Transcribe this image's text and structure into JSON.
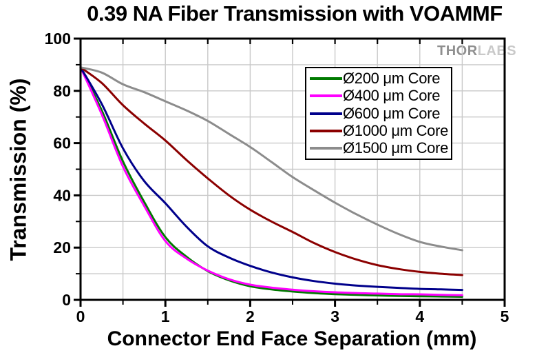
{
  "title": "0.39 NA Fiber Transmission with VOAMMF",
  "watermark": {
    "part1": "THOR",
    "part2": "LABS"
  },
  "colors": {
    "background": "#ffffff",
    "axis": "#000000",
    "gridline": "#c9c9c9",
    "text": "#000000",
    "watermark_dark": "#8f8f8f",
    "watermark_light": "#c9c9c9"
  },
  "chart_data": {
    "type": "line",
    "title": "0.39 NA Fiber Transmission with VOAMMF",
    "xlabel": "Connector End Face Separation (mm)",
    "ylabel": "Transmission (%)",
    "xlim": [
      0,
      5
    ],
    "ylim": [
      0,
      100
    ],
    "x_ticks": [
      0,
      1,
      2,
      3,
      4,
      5
    ],
    "y_ticks": [
      0,
      20,
      40,
      60,
      80,
      100
    ],
    "x_minor_step": 0.5,
    "y_minor_step": 10,
    "grid": true,
    "legend_position": "upper-right-inside",
    "x": [
      0,
      0.25,
      0.5,
      0.75,
      1.0,
      1.25,
      1.5,
      1.75,
      2.0,
      2.25,
      2.5,
      2.75,
      3.0,
      3.25,
      3.5,
      3.75,
      4.0,
      4.25,
      4.5
    ],
    "series": [
      {
        "name": "Ø200 μm Core",
        "color": "#007a00",
        "values": [
          89,
          72.5,
          53,
          37.5,
          24,
          16.5,
          11,
          7.5,
          5.2,
          4.0,
          3.2,
          2.6,
          2.2,
          1.9,
          1.7,
          1.5,
          1.4,
          1.3,
          1.2
        ]
      },
      {
        "name": "Ø400 μm Core",
        "color": "#ff00ff",
        "values": [
          89,
          71,
          51,
          36,
          22.5,
          15.8,
          11.2,
          7.9,
          5.8,
          4.7,
          3.9,
          3.3,
          2.9,
          2.6,
          2.4,
          2.2,
          2.1,
          1.9,
          1.8
        ]
      },
      {
        "name": "Ø600 μm Core",
        "color": "#00008b",
        "values": [
          89,
          75,
          58,
          45.5,
          37,
          28,
          20.5,
          16.2,
          13,
          10.5,
          8.6,
          7.2,
          6.2,
          5.5,
          5.0,
          4.6,
          4.2,
          4.0,
          3.8
        ]
      },
      {
        "name": "Ø1000 μm Core",
        "color": "#8b0000",
        "values": [
          89,
          83,
          74.5,
          67.5,
          61,
          53.5,
          46.5,
          40,
          34.5,
          30,
          26,
          21.8,
          18.3,
          15.5,
          13.3,
          11.8,
          10.7,
          10.0,
          9.5
        ]
      },
      {
        "name": "Ø1500 μm Core",
        "color": "#8c8c8c",
        "values": [
          89,
          87,
          82.5,
          79.5,
          76,
          72.5,
          68.5,
          63.5,
          58.5,
          52.8,
          47,
          42,
          37.2,
          32.8,
          28.8,
          25.2,
          22.2,
          20.4,
          19
        ]
      }
    ]
  }
}
